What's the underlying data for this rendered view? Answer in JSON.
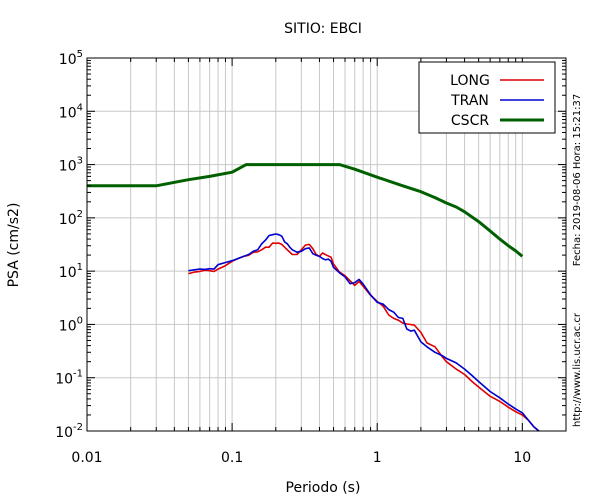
{
  "chart_data": {
    "type": "line",
    "title": "SITIO: EBCI",
    "xlabel": "Periodo (s)",
    "ylabel": "PSA (cm/s2)",
    "x_scale": "log",
    "y_scale": "log",
    "xlim": [
      0.01,
      20
    ],
    "ylim": [
      0.01,
      100000
    ],
    "x_ticks": [
      {
        "value": 0.01,
        "label": "0.01"
      },
      {
        "value": 0.1,
        "label": "0.1"
      },
      {
        "value": 1,
        "label": "1"
      },
      {
        "value": 10,
        "label": "10"
      }
    ],
    "y_ticks": [
      {
        "value": 0.01,
        "base": "10",
        "exp": "-2"
      },
      {
        "value": 0.1,
        "base": "10",
        "exp": "-1"
      },
      {
        "value": 1,
        "base": "10",
        "exp": "0"
      },
      {
        "value": 10,
        "base": "10",
        "exp": "1"
      },
      {
        "value": 100,
        "base": "10",
        "exp": "2"
      },
      {
        "value": 1000,
        "base": "10",
        "exp": "3"
      },
      {
        "value": 10000,
        "base": "10",
        "exp": "4"
      },
      {
        "value": 100000,
        "base": "10",
        "exp": "5"
      }
    ],
    "grid": true,
    "legend_position": "top-right",
    "series": [
      {
        "name": "LONG",
        "color": "#e00000",
        "points": [
          [
            0.05,
            9
          ],
          [
            0.055,
            9.6
          ],
          [
            0.06,
            9.9
          ],
          [
            0.065,
            10.4
          ],
          [
            0.07,
            10.2
          ],
          [
            0.075,
            9.9
          ],
          [
            0.08,
            10.9
          ],
          [
            0.09,
            12.7
          ],
          [
            0.1,
            15.3
          ],
          [
            0.11,
            17.3
          ],
          [
            0.12,
            18.9
          ],
          [
            0.13,
            19.8
          ],
          [
            0.14,
            22.7
          ],
          [
            0.15,
            23.1
          ],
          [
            0.16,
            25.2
          ],
          [
            0.17,
            28.2
          ],
          [
            0.18,
            28.1
          ],
          [
            0.19,
            33.6
          ],
          [
            0.2,
            33.3
          ],
          [
            0.21,
            33.6
          ],
          [
            0.22,
            31.8
          ],
          [
            0.24,
            25.2
          ],
          [
            0.26,
            20.5
          ],
          [
            0.28,
            20.5
          ],
          [
            0.3,
            25.2
          ],
          [
            0.32,
            30.8
          ],
          [
            0.34,
            31.8
          ],
          [
            0.36,
            26.4
          ],
          [
            0.38,
            20.5
          ],
          [
            0.4,
            18.9
          ],
          [
            0.42,
            21.9
          ],
          [
            0.45,
            19.8
          ],
          [
            0.48,
            18.3
          ],
          [
            0.5,
            13.6
          ],
          [
            0.55,
            9.6
          ],
          [
            0.6,
            8.2
          ],
          [
            0.65,
            6.6
          ],
          [
            0.7,
            5.4
          ],
          [
            0.75,
            6.4
          ],
          [
            0.8,
            5.2
          ],
          [
            0.9,
            3.5
          ],
          [
            1.0,
            2.7
          ],
          [
            1.1,
            2.2
          ],
          [
            1.2,
            1.5
          ],
          [
            1.3,
            1.3
          ],
          [
            1.4,
            1.2
          ],
          [
            1.5,
            1.06
          ],
          [
            1.6,
            1.02
          ],
          [
            1.8,
            0.97
          ],
          [
            2.0,
            0.71
          ],
          [
            2.2,
            0.45
          ],
          [
            2.5,
            0.38
          ],
          [
            2.8,
            0.25
          ],
          [
            3.0,
            0.2
          ],
          [
            3.5,
            0.145
          ],
          [
            4.0,
            0.115
          ],
          [
            4.5,
            0.085
          ],
          [
            5.0,
            0.067
          ],
          [
            6.0,
            0.045
          ],
          [
            7.0,
            0.036
          ],
          [
            8.0,
            0.028
          ],
          [
            9.0,
            0.023
          ],
          [
            10.0,
            0.02
          ],
          [
            11.0,
            0.016
          ],
          [
            12.0,
            0.012
          ],
          [
            13.0,
            0.01
          ]
        ]
      },
      {
        "name": "TRAN",
        "color": "#0000d0",
        "points": [
          [
            0.05,
            10.2
          ],
          [
            0.055,
            10.6
          ],
          [
            0.06,
            10.9
          ],
          [
            0.065,
            10.8
          ],
          [
            0.07,
            11.1
          ],
          [
            0.075,
            10.9
          ],
          [
            0.08,
            13.2
          ],
          [
            0.09,
            14.5
          ],
          [
            0.1,
            15.7
          ],
          [
            0.11,
            17.3
          ],
          [
            0.12,
            18.9
          ],
          [
            0.13,
            20.5
          ],
          [
            0.14,
            23.6
          ],
          [
            0.15,
            25.2
          ],
          [
            0.16,
            32.6
          ],
          [
            0.17,
            38.3
          ],
          [
            0.18,
            46.7
          ],
          [
            0.19,
            48.2
          ],
          [
            0.2,
            49.8
          ],
          [
            0.21,
            48.2
          ],
          [
            0.22,
            45.2
          ],
          [
            0.23,
            35.4
          ],
          [
            0.24,
            32.6
          ],
          [
            0.25,
            28.2
          ],
          [
            0.26,
            25.2
          ],
          [
            0.28,
            22.7
          ],
          [
            0.3,
            23.6
          ],
          [
            0.32,
            26.4
          ],
          [
            0.34,
            27.3
          ],
          [
            0.36,
            21.3
          ],
          [
            0.38,
            19.8
          ],
          [
            0.4,
            18.9
          ],
          [
            0.42,
            17.3
          ],
          [
            0.44,
            16.3
          ],
          [
            0.46,
            16.8
          ],
          [
            0.48,
            15.3
          ],
          [
            0.5,
            11.8
          ],
          [
            0.55,
            9.3
          ],
          [
            0.6,
            7.8
          ],
          [
            0.65,
            5.8
          ],
          [
            0.7,
            6.1
          ],
          [
            0.75,
            7.0
          ],
          [
            0.8,
            5.7
          ],
          [
            0.9,
            3.6
          ],
          [
            1.0,
            2.6
          ],
          [
            1.1,
            2.4
          ],
          [
            1.2,
            1.9
          ],
          [
            1.3,
            1.7
          ],
          [
            1.4,
            1.35
          ],
          [
            1.5,
            1.3
          ],
          [
            1.6,
            0.82
          ],
          [
            1.7,
            0.75
          ],
          [
            1.8,
            0.78
          ],
          [
            2.0,
            0.47
          ],
          [
            2.2,
            0.38
          ],
          [
            2.5,
            0.3
          ],
          [
            2.8,
            0.26
          ],
          [
            3.0,
            0.23
          ],
          [
            3.5,
            0.19
          ],
          [
            4.0,
            0.145
          ],
          [
            4.5,
            0.11
          ],
          [
            5.0,
            0.085
          ],
          [
            6.0,
            0.055
          ],
          [
            7.0,
            0.042
          ],
          [
            8.0,
            0.032
          ],
          [
            9.0,
            0.026
          ],
          [
            10.0,
            0.022
          ],
          [
            11.0,
            0.016
          ],
          [
            12.0,
            0.012
          ],
          [
            13.0,
            0.01
          ]
        ]
      },
      {
        "name": "CSCR",
        "color": "#006000",
        "points": [
          [
            0.01,
            400
          ],
          [
            0.03,
            400
          ],
          [
            0.05,
            520
          ],
          [
            0.07,
            600
          ],
          [
            0.1,
            720
          ],
          [
            0.125,
            1000
          ],
          [
            0.2,
            1000
          ],
          [
            0.3,
            1000
          ],
          [
            0.4,
            1000
          ],
          [
            0.55,
            1000
          ],
          [
            0.7,
            820
          ],
          [
            1.0,
            580
          ],
          [
            1.5,
            400
          ],
          [
            2.0,
            310
          ],
          [
            2.5,
            240
          ],
          [
            3.0,
            190
          ],
          [
            3.5,
            160
          ],
          [
            4.0,
            130
          ],
          [
            5.0,
            85
          ],
          [
            6.0,
            57
          ],
          [
            7.0,
            40
          ],
          [
            8.0,
            30
          ],
          [
            9.0,
            24
          ],
          [
            10.0,
            19
          ]
        ]
      }
    ]
  },
  "side_notes": {
    "date": "Fecha: 2019-08-06 Hora: 15:21:37",
    "url": "http://www.lis.ucr.ac.cr"
  }
}
